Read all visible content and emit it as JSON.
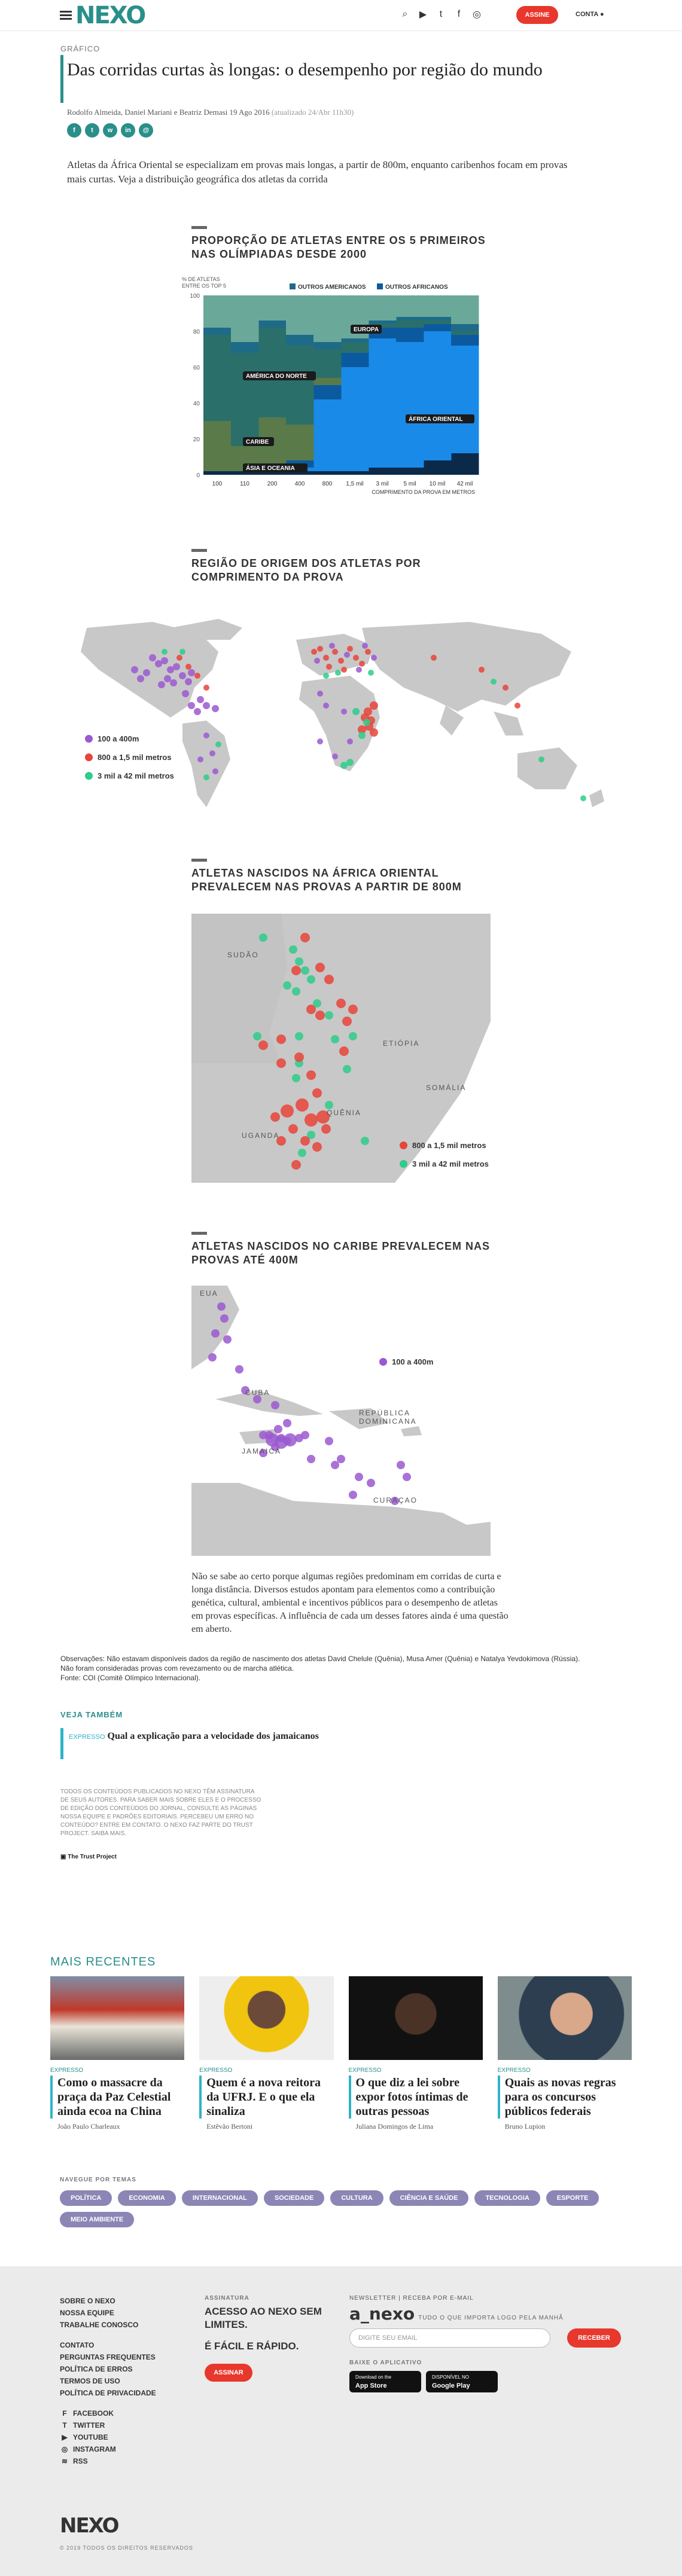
{
  "header": {
    "logo": "NEXO",
    "icons": [
      "search-icon",
      "youtube-icon",
      "twitter-icon",
      "facebook-icon",
      "instagram-icon"
    ],
    "assine": "ASSINE",
    "conta": "CONTA"
  },
  "article": {
    "topic": "GRÁFICO",
    "title": "Das corridas curtas às longas: o desempenho por região do mundo",
    "authors": "Rodolfo Almeida, Daniel Mariani e Beatriz Demasi",
    "date": "19 Ago 2016",
    "updated": "(atualizado 24/Abr 11h30)",
    "share_icons": [
      "facebook-icon",
      "twitter-icon",
      "whatsapp-icon",
      "linkedin-icon",
      "email-icon"
    ],
    "lead": "Atletas da África Oriental se especializam em provas mais longas, a partir de 800m, enquanto caribenhos focam em provas mais curtas. Veja a distribuição geográfica dos atletas da corrida"
  },
  "graphic1": {
    "title": "PROPORÇÃO DE ATLETAS ENTRE OS 5 PRIMEIROS NAS OLÍMPIADAS DESDE 2000",
    "legend_top": [
      "OUTROS AMERICANOS",
      "OUTROS AFRICANOS"
    ],
    "ylabel": "% DE ATLETAS ENTRE OS TOP 5",
    "xlabel": "COMPRIMENTO DA PROVA EM METROS",
    "region_labels": [
      "EUROPA",
      "AMÉRICA DO NORTE",
      "ÁFRICA ORIENTAL",
      "CARIBE",
      "ÁSIA E OCEANIA"
    ]
  },
  "chart_data": {
    "type": "area",
    "title": "PROPORÇÃO DE ATLETAS ENTRE OS 5 PRIMEIROS NAS OLÍMPIADAS DESDE 2000",
    "ylabel": "% DE ATLETAS ENTRE OS TOP 5",
    "xlabel": "COMPRIMENTO DA PROVA EM METROS",
    "categories": [
      "100",
      "110",
      "200",
      "400",
      "800",
      "1,5 mil",
      "3 mil",
      "5 mil",
      "10 mil",
      "42 mil"
    ],
    "ylim": [
      0,
      100
    ],
    "yticks": [
      0,
      20,
      40,
      60,
      80,
      100
    ],
    "colors": {
      "Ásia e Oceania": "#0b2a4a",
      "África Oriental": "#1a8ae8",
      "Outros africanos": "#0b5aa0",
      "Caribe": "#5a7a4a",
      "América do Norte": "#2a6f6a",
      "Outros americanos": "#1e6b88",
      "Europa": "#6aa89a"
    },
    "series": [
      {
        "name": "Ásia e Oceania",
        "values": [
          2,
          2,
          2,
          2,
          2,
          2,
          4,
          4,
          8,
          12
        ]
      },
      {
        "name": "África Oriental",
        "values": [
          0,
          0,
          0,
          2,
          40,
          58,
          72,
          70,
          72,
          60
        ]
      },
      {
        "name": "Outros africanos",
        "values": [
          0,
          0,
          2,
          4,
          8,
          8,
          6,
          8,
          4,
          6
        ]
      },
      {
        "name": "Caribe",
        "values": [
          28,
          14,
          28,
          20,
          4,
          0,
          0,
          0,
          0,
          0
        ]
      },
      {
        "name": "América do Norte",
        "values": [
          48,
          52,
          50,
          44,
          16,
          6,
          2,
          4,
          2,
          2
        ]
      },
      {
        "name": "Outros americanos",
        "values": [
          4,
          6,
          4,
          6,
          4,
          2,
          2,
          2,
          2,
          4
        ]
      },
      {
        "name": "Europa",
        "values": [
          18,
          26,
          14,
          22,
          26,
          24,
          14,
          12,
          12,
          16
        ]
      }
    ]
  },
  "graphic2": {
    "title": "REGIÃO DE ORIGEM DOS ATLETAS POR COMPRIMENTO DA PROVA",
    "legend": [
      {
        "label": "100 a 400m",
        "color": "#9b59d0"
      },
      {
        "label": "800 a 1,5 mil metros",
        "color": "#e8443a"
      },
      {
        "label": "3 mil a 42 mil metros",
        "color": "#2ecc8a"
      }
    ]
  },
  "graphic3": {
    "title": "ATLETAS NASCIDOS NA ÁFRICA ORIENTAL PREVALECEM NAS PROVAS A PARTIR DE 800M",
    "countries": [
      "SUDÃO",
      "ETIÓPIA",
      "SOMÁLIA",
      "UGANDA",
      "QUÊNIA"
    ],
    "legend": [
      {
        "label": "800 a 1,5 mil metros",
        "color": "#e8443a"
      },
      {
        "label": "3 mil a 42 mil metros",
        "color": "#2ecc8a"
      }
    ]
  },
  "graphic4": {
    "title": "ATLETAS NASCIDOS NO CARIBE PREVALECEM NAS PROVAS ATÉ 400M",
    "countries": [
      "EUA",
      "CUBA",
      "REPÚBLICA DOMINICANA",
      "JAMAICA",
      "CURAÇAO"
    ],
    "legend": [
      {
        "label": "100 a 400m",
        "color": "#9b59d0"
      }
    ]
  },
  "body2": "Não se sabe ao certo porque algumas regiões predominam em corridas de curta e longa distância. Diversos estudos apontam para elementos como a contribuição genética, cultural, ambiental e incentivos públicos para o desempenho de atletas em provas específicas. A influência de cada um desses fatores ainda é uma questão em aberto.",
  "obs": "Observações: Não estavam disponíveis dados da região de nascimento dos atletas David Chelule (Quênia), Musa Amer (Quênia) e Natalya Yevdokimova (Rússia). Não foram consideradas provas com revezamento ou de marcha atlética.",
  "source": "Fonte: COI (Comitê Olímpico Internacional).",
  "veja": {
    "label": "VEJA TAMBÉM",
    "kicker": "EXPRESSO",
    "title": "Qual a explicação para a velocidade dos jamaicanos"
  },
  "disclaimer": "TODOS OS CONTEÚDOS PUBLICADOS NO NEXO TÊM ASSINATURA DE SEUS AUTORES. PARA SABER MAIS SOBRE ELES E O PROCESSO DE EDIÇÃO DOS CONTEÚDOS DO JORNAL, CONSULTE AS PÁGINAS NOSSA EQUIPE E PADRÕES EDITORIAIS. PERCEBEU UM ERRO NO CONTEÚDO? ENTRE EM CONTATO. O NEXO FAZ PARTE DO TRUST PROJECT. SAIBA MAIS.",
  "trust": "The Trust Project",
  "recent": {
    "label": "MAIS RECENTES",
    "cards": [
      {
        "kicker": "EXPRESSO",
        "title": "Como o massacre da praça da Paz Celestial ainda ecoa na China",
        "author": "João Paulo Charleaux"
      },
      {
        "kicker": "EXPRESSO",
        "title": "Quem é a nova reitora da UFRJ. E o que ela sinaliza",
        "author": "Estêvão Bertoni"
      },
      {
        "kicker": "EXPRESSO",
        "title": "O que diz a lei sobre expor fotos íntimas de outras pessoas",
        "author": "Juliana Domingos de Lima"
      },
      {
        "kicker": "EXPRESSO",
        "title": "Quais as novas regras para os concursos públicos federais",
        "author": "Bruno Lupion"
      }
    ]
  },
  "tags": {
    "label": "NAVEGUE POR TEMAS",
    "items": [
      "POLÍTICA",
      "ECONOMIA",
      "INTERNACIONAL",
      "SOCIEDADE",
      "CULTURA",
      "CIÊNCIA E SAÚDE",
      "TECNOLOGIA",
      "ESPORTE",
      "MEIO AMBIENTE"
    ]
  },
  "footer": {
    "links1": [
      "SOBRE O NEXO",
      "NOSSA EQUIPE",
      "TRABALHE CONOSCO"
    ],
    "links2": [
      "CONTATO",
      "PERGUNTAS FREQUENTES",
      "POLÍTICA DE ERROS",
      "TERMOS DE USO",
      "POLÍTICA DE PRIVACIDADE"
    ],
    "social": [
      "FACEBOOK",
      "TWITTER",
      "YOUTUBE",
      "INSTAGRAM",
      "RSS"
    ],
    "assinatura_label": "ASSINATURA",
    "cta1": "ACESSO AO NEXO SEM LIMITES.",
    "cta2": "É FÁCIL E RÁPIDO.",
    "assine": "ASSINAR",
    "newsletter_label": "NEWSLETTER | RECEBA POR E-MAIL",
    "newsletter_name": "a_nexo",
    "newsletter_tag": "TUDO O QUE IMPORTA LOGO PELA MANHÃ",
    "email_placeholder": "DIGITE SEU EMAIL",
    "receber": "RECEBER",
    "app_label": "BAIXE O APLICATIVO",
    "appstore_small": "Download on the",
    "appstore": "App Store",
    "gplay_small": "DISPONÍVEL NO",
    "gplay": "Google Play",
    "logo": "NEXO",
    "copyright": "© 2019 TODOS OS DIREITOS RESERVADOS"
  }
}
